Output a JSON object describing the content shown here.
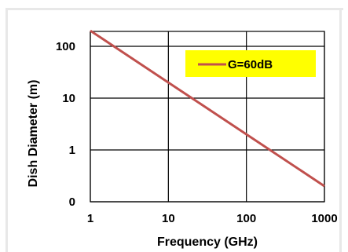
{
  "chart_data": {
    "type": "line",
    "xlabel": "Frequency (GHz)",
    "ylabel": "Dish Diameter (m)",
    "x_scale": "log",
    "y_scale": "log",
    "xlim": [
      1,
      1000
    ],
    "ylim": [
      0.1,
      200
    ],
    "x_ticks": [
      1,
      10,
      100,
      1000
    ],
    "x_tick_labels": [
      "1",
      "10",
      "100",
      "1000"
    ],
    "y_ticks": [
      0.1,
      1,
      10,
      100
    ],
    "y_tick_labels": [
      "0",
      "1",
      "10",
      "100"
    ],
    "grid": true,
    "legend_position": "top-right",
    "series": [
      {
        "name": "G=60dB",
        "color": "#c0504d",
        "x": [
          1,
          10,
          100,
          1000
        ],
        "y": [
          200,
          20,
          2,
          0.2
        ]
      }
    ],
    "colors": {
      "legend_background": "#ffff00",
      "grid": "#000000",
      "line": "#c0504d"
    }
  }
}
